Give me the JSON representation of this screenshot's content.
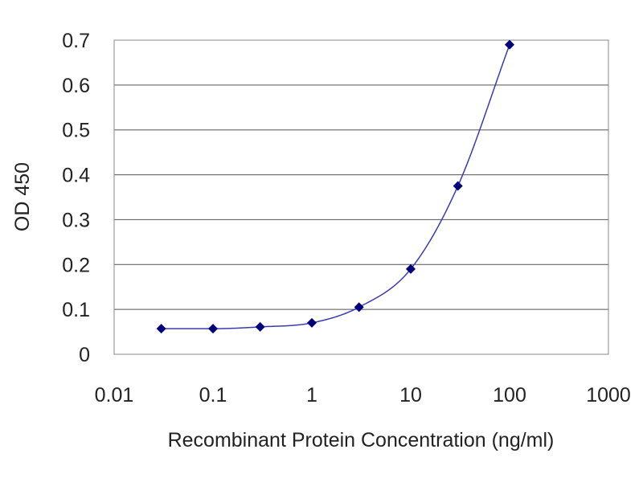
{
  "chart_data": {
    "type": "scatter",
    "xlabel": "Recombinant Protein Concentration (ng/ml)",
    "ylabel": "OD 450",
    "xscale": "log",
    "xlim": [
      0.01,
      1000
    ],
    "ylim": [
      0,
      0.7
    ],
    "x_ticks": [
      "0.01",
      "0.1",
      "1",
      "10",
      "100",
      "1000"
    ],
    "y_ticks": [
      "0",
      "0.1",
      "0.2",
      "0.3",
      "0.4",
      "0.5",
      "0.6",
      "0.7"
    ],
    "grid": "horizontal",
    "legend": "none",
    "series": [
      {
        "x": [
          0.03,
          0.1,
          0.3,
          1,
          3,
          10,
          30,
          100
        ],
        "y": [
          0.057,
          0.057,
          0.061,
          0.07,
          0.105,
          0.19,
          0.375,
          0.69
        ],
        "marker": "diamond",
        "fit_line": "smooth curve"
      }
    ],
    "colors": {
      "marker": "#00007a",
      "line": "#3a3ab0",
      "grid": "#555555",
      "plot_border": "#888888",
      "text": "#222222"
    }
  }
}
